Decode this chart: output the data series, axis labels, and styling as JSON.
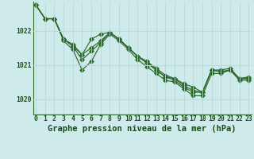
{
  "bg_color": "#ceeaea",
  "grid_color": "#b8d8d8",
  "line_color": "#2d6a2d",
  "marker_color": "#2d6a2d",
  "title": "Graphe pression niveau de la mer (hPa)",
  "title_color": "#1a4a1a",
  "xlim": [
    -0.3,
    23.3
  ],
  "ylim": [
    1019.55,
    1022.85
  ],
  "yticks": [
    1020,
    1021,
    1022
  ],
  "xticks": [
    0,
    1,
    2,
    3,
    4,
    5,
    6,
    7,
    8,
    9,
    10,
    11,
    12,
    13,
    14,
    15,
    16,
    17,
    18,
    19,
    20,
    21,
    22,
    23
  ],
  "series": [
    [
      1022.75,
      1022.35,
      1022.35,
      1021.75,
      1021.55,
      1021.3,
      1021.75,
      1021.9,
      1021.95,
      1021.75,
      1021.5,
      1021.25,
      1021.1,
      1020.85,
      1020.65,
      1020.6,
      1020.45,
      1020.35,
      1020.2,
      1020.85,
      1020.8,
      1020.85,
      1020.6,
      1020.65
    ],
    [
      1022.75,
      1022.35,
      1022.35,
      1021.75,
      1021.55,
      1021.15,
      1021.4,
      1021.65,
      1021.95,
      1021.75,
      1021.5,
      1021.25,
      1021.05,
      1020.85,
      1020.65,
      1020.55,
      1020.35,
      1020.2,
      1020.2,
      1020.85,
      1020.85,
      1020.9,
      1020.6,
      1020.6
    ],
    [
      1022.75,
      1022.35,
      1022.35,
      1021.7,
      1021.45,
      1020.85,
      1021.1,
      1021.6,
      1021.9,
      1021.7,
      1021.45,
      1021.15,
      1020.95,
      1020.75,
      1020.55,
      1020.5,
      1020.3,
      1020.1,
      1020.1,
      1020.75,
      1020.75,
      1020.85,
      1020.55,
      1020.55
    ],
    [
      1022.75,
      1022.35,
      1022.35,
      1021.75,
      1021.6,
      1021.3,
      1021.5,
      1021.7,
      1021.95,
      1021.75,
      1021.5,
      1021.25,
      1021.1,
      1020.9,
      1020.7,
      1020.6,
      1020.4,
      1020.25,
      1020.2,
      1020.85,
      1020.8,
      1020.85,
      1020.6,
      1020.6
    ]
  ],
  "title_fontsize": 7.5,
  "tick_fontsize": 5.8,
  "tick_color": "#1a4a1a",
  "marker_size": 3.0,
  "line_width": 0.85
}
